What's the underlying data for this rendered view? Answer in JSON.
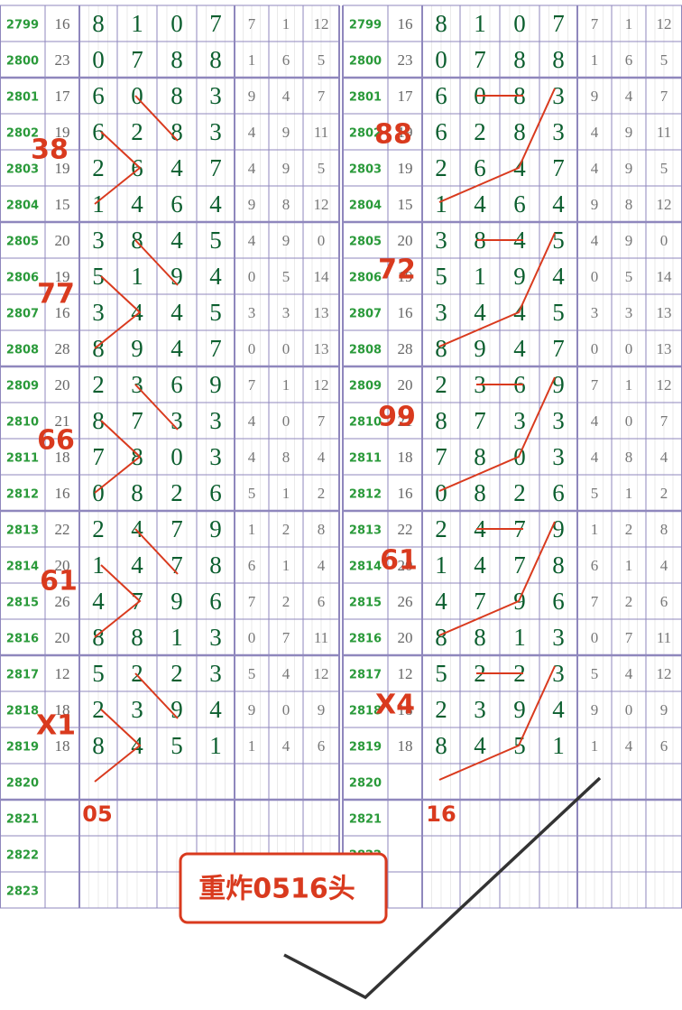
{
  "rows": [
    {
      "issue": 2799,
      "sum": 16,
      "digits": [
        8,
        1,
        0,
        7
      ],
      "extra": [
        7,
        1,
        12
      ]
    },
    {
      "issue": 2800,
      "sum": 23,
      "digits": [
        0,
        7,
        8,
        8
      ],
      "extra": [
        1,
        6,
        5
      ]
    },
    {
      "issue": 2801,
      "sum": 17,
      "digits": [
        6,
        0,
        8,
        3
      ],
      "extra": [
        9,
        4,
        7
      ]
    },
    {
      "issue": 2802,
      "sum": 19,
      "digits": [
        6,
        2,
        8,
        3
      ],
      "extra": [
        4,
        9,
        11
      ]
    },
    {
      "issue": 2803,
      "sum": 19,
      "digits": [
        2,
        6,
        4,
        7
      ],
      "extra": [
        4,
        9,
        5
      ]
    },
    {
      "issue": 2804,
      "sum": 15,
      "digits": [
        1,
        4,
        6,
        4
      ],
      "extra": [
        9,
        8,
        12
      ]
    },
    {
      "issue": 2805,
      "sum": 20,
      "digits": [
        3,
        8,
        4,
        5
      ],
      "extra": [
        4,
        9,
        0
      ]
    },
    {
      "issue": 2806,
      "sum": 19,
      "digits": [
        5,
        1,
        9,
        4
      ],
      "extra": [
        0,
        5,
        14
      ]
    },
    {
      "issue": 2807,
      "sum": 16,
      "digits": [
        3,
        4,
        4,
        5
      ],
      "extra": [
        3,
        3,
        13
      ]
    },
    {
      "issue": 2808,
      "sum": 28,
      "digits": [
        8,
        9,
        4,
        7
      ],
      "extra": [
        0,
        0,
        13
      ]
    },
    {
      "issue": 2809,
      "sum": 20,
      "digits": [
        2,
        3,
        6,
        9
      ],
      "extra": [
        7,
        1,
        12
      ]
    },
    {
      "issue": 2810,
      "sum": 21,
      "digits": [
        8,
        7,
        3,
        3
      ],
      "extra": [
        4,
        0,
        7
      ]
    },
    {
      "issue": 2811,
      "sum": 18,
      "digits": [
        7,
        8,
        0,
        3
      ],
      "extra": [
        4,
        8,
        4
      ]
    },
    {
      "issue": 2812,
      "sum": 16,
      "digits": [
        0,
        8,
        2,
        6
      ],
      "extra": [
        5,
        1,
        2
      ]
    },
    {
      "issue": 2813,
      "sum": 22,
      "digits": [
        2,
        4,
        7,
        9
      ],
      "extra": [
        1,
        2,
        8
      ]
    },
    {
      "issue": 2814,
      "sum": 20,
      "digits": [
        1,
        4,
        7,
        8
      ],
      "extra": [
        6,
        1,
        4
      ]
    },
    {
      "issue": 2815,
      "sum": 26,
      "digits": [
        4,
        7,
        9,
        6
      ],
      "extra": [
        7,
        2,
        6
      ]
    },
    {
      "issue": 2816,
      "sum": 20,
      "digits": [
        8,
        8,
        1,
        3
      ],
      "extra": [
        0,
        7,
        11
      ]
    },
    {
      "issue": 2817,
      "sum": 12,
      "digits": [
        5,
        2,
        2,
        3
      ],
      "extra": [
        5,
        4,
        12
      ]
    },
    {
      "issue": 2818,
      "sum": 18,
      "digits": [
        2,
        3,
        9,
        4
      ],
      "extra": [
        9,
        0,
        9
      ]
    },
    {
      "issue": 2819,
      "sum": 18,
      "digits": [
        8,
        4,
        5,
        1
      ],
      "extra": [
        1,
        4,
        6
      ]
    },
    {
      "issue": 2820
    },
    {
      "issue": 2821
    },
    {
      "issue": 2822
    },
    {
      "issue": 2823
    }
  ],
  "annotations": {
    "left": [
      "38",
      "77",
      "66",
      "61",
      "X1",
      "05"
    ],
    "right": [
      "88",
      "72",
      "99",
      "61",
      "X4",
      "16"
    ]
  },
  "banner": "重炸0516头"
}
